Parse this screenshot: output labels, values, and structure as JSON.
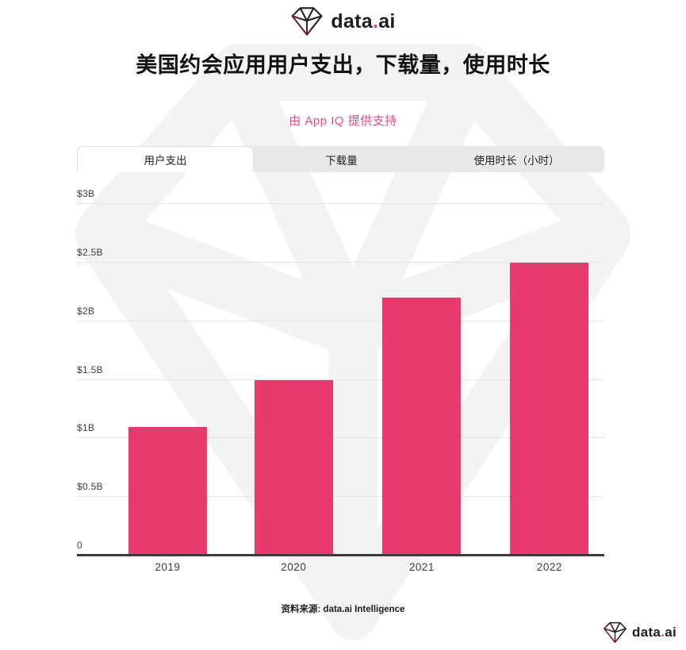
{
  "brand": {
    "name_pre": "data",
    "dot": ".",
    "name_post": "ai"
  },
  "header": {
    "title": "美国约会应用用户支出，下载量，使用时长",
    "subtitle": "由 App IQ 提供支持"
  },
  "tabs": [
    {
      "id": "user-spending",
      "label": "用户支出",
      "active": true
    },
    {
      "id": "downloads",
      "label": "下载量",
      "active": false
    },
    {
      "id": "usage-hours",
      "label": "使用时长（小时）",
      "active": false
    }
  ],
  "chart_data": {
    "type": "bar",
    "title": "用户支出",
    "categories": [
      "2019",
      "2020",
      "2021",
      "2022"
    ],
    "values": [
      1.1,
      1.5,
      2.2,
      2.5
    ],
    "unit": "billion USD",
    "ylim": [
      0,
      3
    ],
    "ytick_step": 0.5,
    "ytick_labels": [
      "0",
      "$0.5B",
      "$1B",
      "$1.5B",
      "$2B",
      "$2.5B",
      "$3B"
    ],
    "grid": true,
    "legend": "none",
    "bar_color": "#ea3a6d"
  },
  "footer": {
    "source": "资料来源: data.ai Intelligence"
  },
  "colors": {
    "accent": "#ea3a6d",
    "subtitle_pink": "#f04a7a",
    "logo_dot_pink": "#e8376b",
    "tab_inactive_bg": "#e9e9e9",
    "gridline": "#e4e4e4",
    "axis": "#3a3a3a",
    "watermark": "#f3f3f3"
  }
}
